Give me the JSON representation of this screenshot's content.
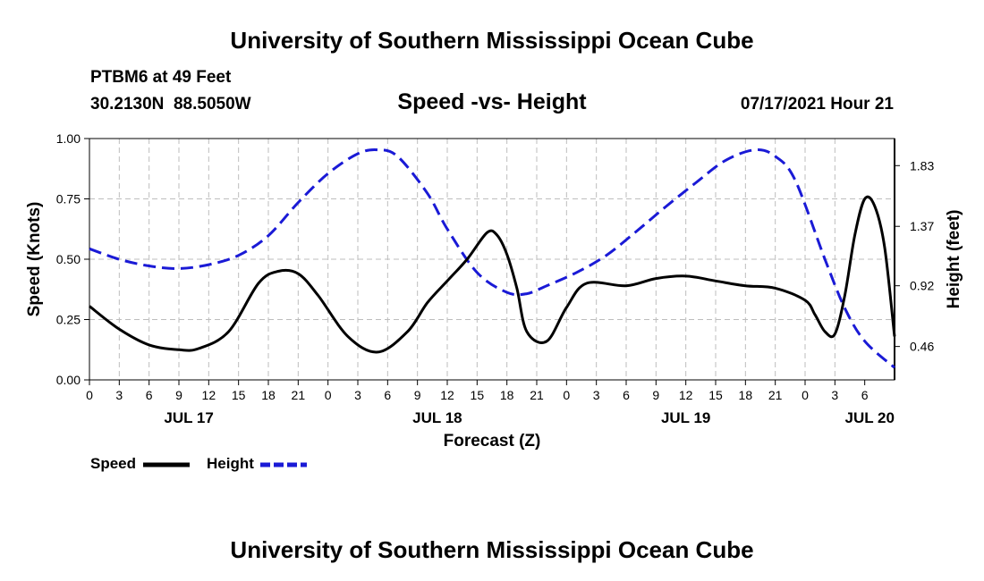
{
  "header": {
    "title": "University of Southern Mississippi Ocean Cube",
    "station": "PTBM6 at 49 Feet",
    "coords": "30.2130N  88.5050W",
    "datetime": "07/17/2021 Hour 21"
  },
  "footer": {
    "title": "University of Southern Mississippi Ocean Cube"
  },
  "legend": {
    "speed_label": "Speed",
    "height_label": "Height"
  },
  "colors": {
    "speed": "#000000",
    "height": "#1a1ad6",
    "grid": "#bdbdbd"
  },
  "chart_data": {
    "type": "line",
    "title": "Speed -vs- Height",
    "xlabel": "Forecast (Z)",
    "ylabel": "Speed (Knots)",
    "y2label": "Height (feet)",
    "x_range_hours": [
      0,
      81
    ],
    "ylim": [
      0,
      1.0
    ],
    "y2lim": [
      0.207,
      2.035
    ],
    "yticks": [
      "0.00",
      "0.25",
      "0.50",
      "0.75",
      "1.00"
    ],
    "y2ticks": [
      "0.46",
      "0.92",
      "1.37",
      "1.83"
    ],
    "xtick_labels": [
      "0",
      "3",
      "6",
      "9",
      "12",
      "15",
      "18",
      "21",
      "0",
      "3",
      "6",
      "9",
      "12",
      "15",
      "18",
      "21",
      "0",
      "3",
      "6",
      "9",
      "12",
      "15",
      "18",
      "21",
      "0",
      "3",
      "6"
    ],
    "day_labels": [
      {
        "label": "JUL 17",
        "hour": 10
      },
      {
        "label": "JUL 18",
        "hour": 35
      },
      {
        "label": "JUL 19",
        "hour": 60
      },
      {
        "label": "JUL 20",
        "hour": 78.5
      }
    ],
    "series": [
      {
        "name": "Speed",
        "axis": "left",
        "style": "solid",
        "x": [
          0,
          3,
          6,
          9,
          11,
          14,
          17,
          19,
          21,
          23,
          26,
          29,
          32,
          34,
          36,
          38,
          40,
          41,
          42,
          43,
          44,
          46,
          48,
          50,
          54,
          57,
          60,
          63,
          66,
          69,
          72,
          73,
          74,
          75,
          76,
          77,
          78,
          79,
          80,
          81
        ],
        "values": [
          0.305,
          0.21,
          0.145,
          0.125,
          0.13,
          0.2,
          0.4,
          0.45,
          0.44,
          0.35,
          0.18,
          0.115,
          0.2,
          0.32,
          0.41,
          0.5,
          0.61,
          0.6,
          0.52,
          0.38,
          0.2,
          0.16,
          0.3,
          0.4,
          0.39,
          0.42,
          0.43,
          0.41,
          0.39,
          0.38,
          0.33,
          0.27,
          0.2,
          0.19,
          0.35,
          0.6,
          0.75,
          0.72,
          0.55,
          0.18
        ]
      },
      {
        "name": "Height",
        "axis": "right",
        "style": "dashed",
        "x": [
          0,
          3,
          6,
          9,
          12,
          15,
          18,
          21,
          24,
          27,
          29,
          31,
          34,
          36,
          39,
          42,
          44,
          46,
          49,
          52,
          55,
          58,
          61,
          64,
          67,
          69,
          71,
          74,
          76,
          78,
          81
        ],
        "values": [
          1.2,
          1.12,
          1.07,
          1.05,
          1.08,
          1.15,
          1.3,
          1.55,
          1.77,
          1.92,
          1.95,
          1.9,
          1.62,
          1.35,
          1.02,
          0.87,
          0.86,
          0.92,
          1.02,
          1.15,
          1.33,
          1.52,
          1.7,
          1.87,
          1.95,
          1.9,
          1.72,
          1.12,
          0.75,
          0.5,
          0.3
        ]
      }
    ]
  }
}
